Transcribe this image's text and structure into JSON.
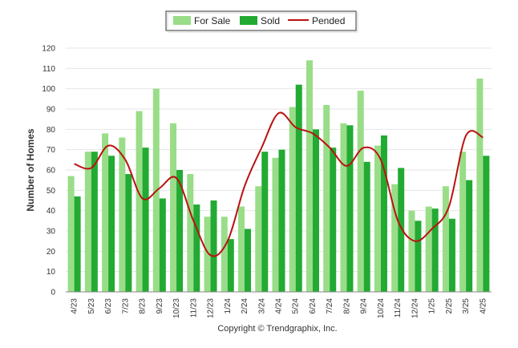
{
  "chart_data": {
    "type": "bar",
    "categories": [
      "4/23",
      "5/23",
      "6/23",
      "7/23",
      "8/23",
      "9/23",
      "10/23",
      "11/23",
      "12/23",
      "1/24",
      "2/24",
      "3/24",
      "4/24",
      "5/24",
      "6/24",
      "7/24",
      "8/24",
      "9/24",
      "10/24",
      "11/24",
      "12/24",
      "1/25",
      "2/25",
      "3/25",
      "4/25"
    ],
    "series": [
      {
        "name": "For Sale",
        "type": "bar",
        "color": "#99dd88",
        "values": [
          57,
          69,
          78,
          76,
          89,
          100,
          83,
          58,
          37,
          37,
          42,
          52,
          66,
          91,
          114,
          92,
          83,
          99,
          72,
          53,
          40,
          42,
          52,
          69,
          105
        ]
      },
      {
        "name": "Sold",
        "type": "bar",
        "color": "#22aa33",
        "values": [
          47,
          69,
          67,
          58,
          71,
          46,
          60,
          43,
          45,
          26,
          31,
          69,
          70,
          102,
          80,
          71,
          82,
          64,
          77,
          61,
          35,
          41,
          36,
          55,
          67
        ]
      },
      {
        "name": "Pended",
        "type": "line",
        "color": "#bb1111",
        "values": [
          63,
          61,
          72,
          65,
          46,
          51,
          56,
          35,
          18,
          25,
          52,
          71,
          88,
          81,
          78,
          71,
          62,
          71,
          65,
          35,
          25,
          31,
          42,
          77,
          76
        ]
      }
    ],
    "ylabel": "Number of Homes",
    "xlabel": "",
    "ylim": [
      0,
      120
    ],
    "yticks": [
      0,
      10,
      20,
      30,
      40,
      50,
      60,
      70,
      80,
      90,
      100,
      110,
      120
    ],
    "grid": true,
    "legend_position": "top-center"
  },
  "legend": {
    "for_sale": "For Sale",
    "sold": "Sold",
    "pended": "Pended"
  },
  "footer": "Copyright © Trendgraphix, Inc."
}
